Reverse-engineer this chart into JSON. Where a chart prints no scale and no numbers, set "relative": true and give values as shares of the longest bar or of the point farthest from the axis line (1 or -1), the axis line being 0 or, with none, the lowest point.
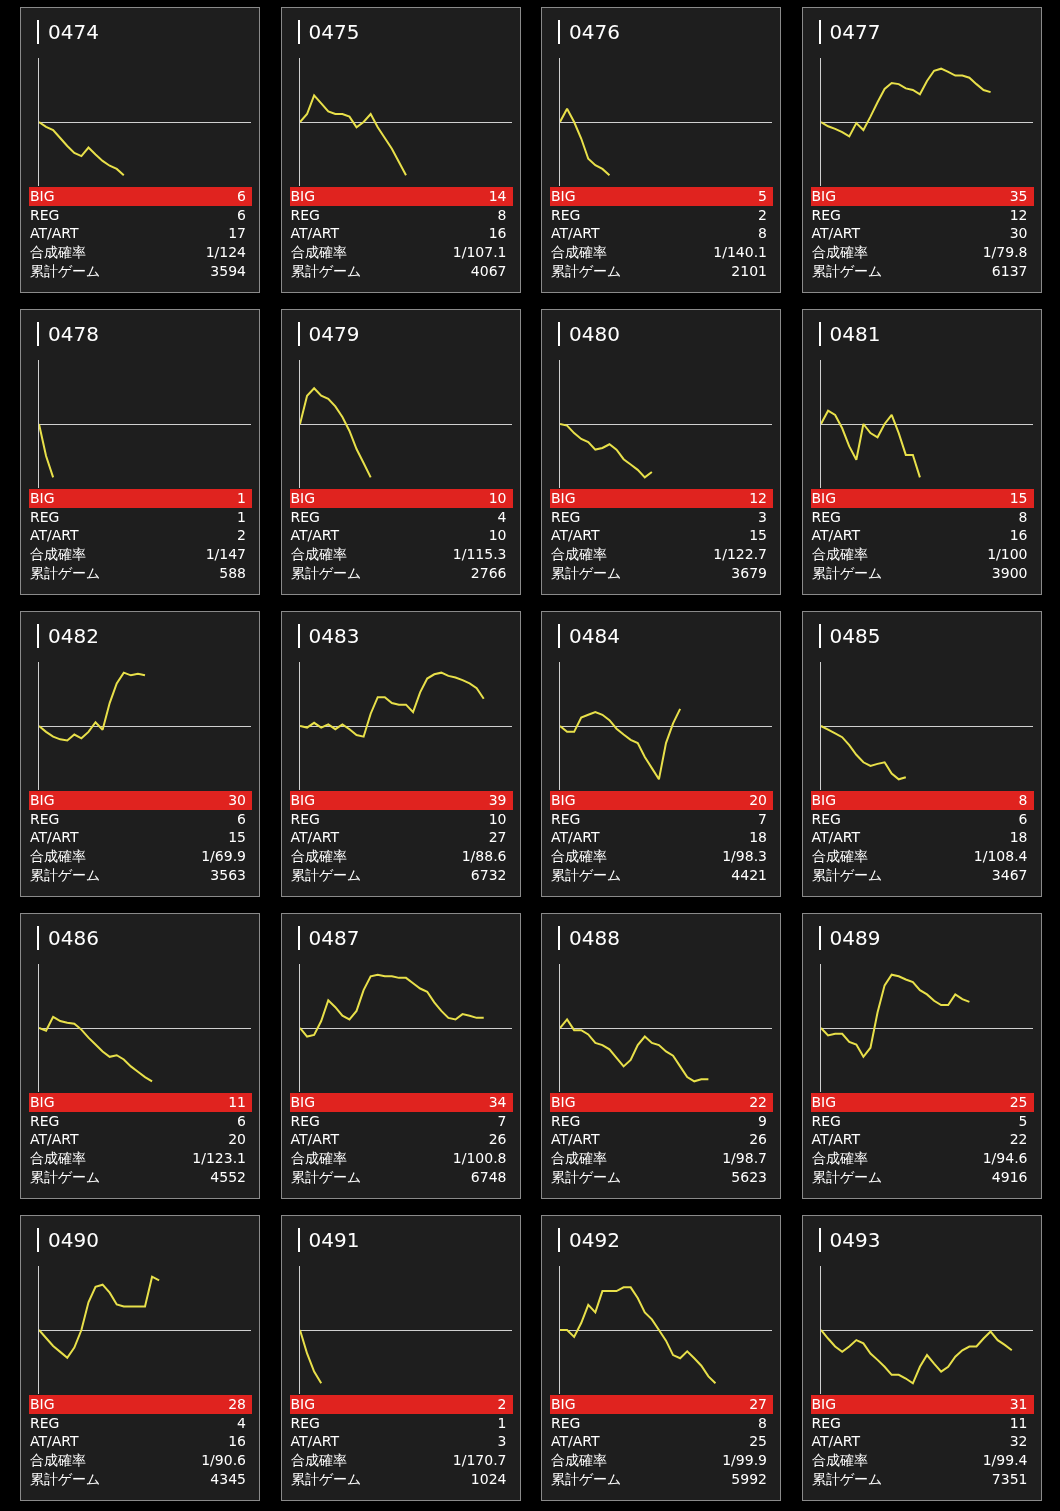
{
  "chart_data": [
    {
      "type": "line",
      "title": "0474",
      "relative": true,
      "categories": [
        null,
        null,
        null,
        null,
        null,
        null,
        null,
        null,
        null,
        null,
        null,
        null,
        null,
        null,
        null,
        null,
        null,
        null,
        null,
        null,
        null,
        null,
        null,
        null,
        null,
        null,
        null,
        null,
        null,
        null,
        null
      ],
      "series": [
        {
          "color": "#e8e04a",
          "values": [
            0,
            -0.09,
            -0.15,
            -0.3,
            -0.45,
            -0.58,
            -0.64,
            -0.48,
            -0.61,
            -0.73,
            -0.82,
            -0.88,
            -1,
            null,
            null,
            null,
            null,
            null,
            null,
            null,
            null,
            null,
            null,
            null,
            null,
            null,
            null,
            null,
            null,
            null,
            null
          ]
        }
      ],
      "annotations": [
        "BIG",
        "6",
        "REG",
        "6",
        "AT/ART",
        "17",
        "合成確率",
        "1/124",
        "累計ゲーム",
        "3594"
      ]
    },
    {
      "type": "line",
      "title": "0475",
      "relative": true,
      "categories": [
        null,
        null,
        null,
        null,
        null,
        null,
        null,
        null,
        null,
        null,
        null,
        null,
        null,
        null,
        null,
        null,
        null,
        null,
        null,
        null,
        null,
        null,
        null,
        null,
        null,
        null,
        null,
        null,
        null,
        null,
        null
      ],
      "series": [
        {
          "color": "#e8e04a",
          "values": [
            0,
            0.15,
            0.5,
            0.35,
            0.2,
            0.15,
            0.15,
            0.1,
            -0.1,
            0,
            0.15,
            -0.1,
            -0.3,
            -0.5,
            -0.75,
            -1,
            null,
            null,
            null,
            null,
            null,
            null,
            null,
            null,
            null,
            null,
            null,
            null,
            null,
            null,
            null
          ]
        }
      ],
      "annotations": [
        "BIG",
        "14",
        "REG",
        "8",
        "AT/ART",
        "16",
        "合成確率",
        "1/107.1",
        "累計ゲーム",
        "4067"
      ]
    },
    {
      "type": "line",
      "title": "0476",
      "relative": true,
      "categories": [
        null,
        null,
        null,
        null,
        null,
        null,
        null,
        null,
        null,
        null,
        null,
        null,
        null,
        null,
        null,
        null,
        null,
        null,
        null,
        null,
        null,
        null,
        null,
        null,
        null,
        null,
        null,
        null,
        null,
        null,
        null
      ],
      "series": [
        {
          "color": "#e8e04a",
          "values": [
            0,
            0.25,
            0,
            -0.31,
            -0.69,
            -0.81,
            -0.88,
            -1,
            null,
            null,
            null,
            null,
            null,
            null,
            null,
            null,
            null,
            null,
            null,
            null,
            null,
            null,
            null,
            null,
            null,
            null,
            null,
            null,
            null,
            null,
            null
          ]
        }
      ],
      "annotations": [
        "BIG",
        "5",
        "REG",
        "2",
        "AT/ART",
        "8",
        "合成確率",
        "1/140.1",
        "累計ゲーム",
        "2101"
      ]
    },
    {
      "type": "line",
      "title": "0477",
      "relative": true,
      "categories": [
        null,
        null,
        null,
        null,
        null,
        null,
        null,
        null,
        null,
        null,
        null,
        null,
        null,
        null,
        null,
        null,
        null,
        null,
        null,
        null,
        null,
        null,
        null,
        null,
        null,
        null,
        null,
        null,
        null,
        null,
        null
      ],
      "series": [
        {
          "color": "#e8e04a",
          "values": [
            0,
            -0.08,
            -0.13,
            -0.19,
            -0.27,
            -0.02,
            -0.15,
            0.1,
            0.37,
            0.62,
            0.73,
            0.71,
            0.63,
            0.6,
            0.52,
            0.77,
            0.96,
            1,
            0.94,
            0.87,
            0.87,
            0.83,
            0.71,
            0.6,
            0.56,
            null,
            null,
            null,
            null,
            null,
            null
          ]
        }
      ],
      "annotations": [
        "BIG",
        "35",
        "REG",
        "12",
        "AT/ART",
        "30",
        "合成確率",
        "1/79.8",
        "累計ゲーム",
        "6137"
      ]
    },
    {
      "type": "line",
      "title": "0478",
      "relative": true,
      "categories": [
        null,
        null,
        null,
        null,
        null,
        null,
        null,
        null,
        null,
        null,
        null,
        null,
        null,
        null,
        null,
        null,
        null,
        null,
        null,
        null,
        null,
        null,
        null,
        null,
        null,
        null,
        null,
        null,
        null,
        null,
        null
      ],
      "series": [
        {
          "color": "#e8e04a",
          "values": [
            0,
            -0.6,
            -1,
            null,
            null,
            null,
            null,
            null,
            null,
            null,
            null,
            null,
            null,
            null,
            null,
            null,
            null,
            null,
            null,
            null,
            null,
            null,
            null,
            null,
            null,
            null,
            null,
            null,
            null,
            null,
            null
          ]
        }
      ],
      "annotations": [
        "BIG",
        "1",
        "REG",
        "1",
        "AT/ART",
        "2",
        "合成確率",
        "1/147",
        "累計ゲーム",
        "588"
      ]
    },
    {
      "type": "line",
      "title": "0479",
      "relative": true,
      "categories": [
        null,
        null,
        null,
        null,
        null,
        null,
        null,
        null,
        null,
        null,
        null,
        null,
        null,
        null,
        null,
        null,
        null,
        null,
        null,
        null,
        null,
        null,
        null,
        null,
        null,
        null,
        null,
        null,
        null,
        null,
        null
      ],
      "series": [
        {
          "color": "#e8e04a",
          "values": [
            0,
            0.53,
            0.67,
            0.53,
            0.47,
            0.33,
            0.13,
            -0.13,
            -0.47,
            -0.73,
            -1,
            null,
            null,
            null,
            null,
            null,
            null,
            null,
            null,
            null,
            null,
            null,
            null,
            null,
            null,
            null,
            null,
            null,
            null,
            null,
            null
          ]
        }
      ],
      "annotations": [
        "BIG",
        "10",
        "REG",
        "4",
        "AT/ART",
        "10",
        "合成確率",
        "1/115.3",
        "累計ゲーム",
        "2766"
      ]
    },
    {
      "type": "line",
      "title": "0480",
      "relative": true,
      "categories": [
        null,
        null,
        null,
        null,
        null,
        null,
        null,
        null,
        null,
        null,
        null,
        null,
        null,
        null,
        null,
        null,
        null,
        null,
        null,
        null,
        null,
        null,
        null,
        null,
        null,
        null,
        null,
        null,
        null,
        null,
        null
      ],
      "series": [
        {
          "color": "#e8e04a",
          "values": [
            0,
            -0.03,
            -0.17,
            -0.28,
            -0.34,
            -0.48,
            -0.45,
            -0.38,
            -0.48,
            -0.66,
            -0.76,
            -0.86,
            -1,
            -0.9,
            null,
            null,
            null,
            null,
            null,
            null,
            null,
            null,
            null,
            null,
            null,
            null,
            null,
            null,
            null,
            null,
            null
          ]
        }
      ],
      "annotations": [
        "BIG",
        "12",
        "REG",
        "3",
        "AT/ART",
        "15",
        "合成確率",
        "1/122.7",
        "累計ゲーム",
        "3679"
      ]
    },
    {
      "type": "line",
      "title": "0481",
      "relative": true,
      "categories": [
        null,
        null,
        null,
        null,
        null,
        null,
        null,
        null,
        null,
        null,
        null,
        null,
        null,
        null,
        null,
        null,
        null,
        null,
        null,
        null,
        null,
        null,
        null,
        null,
        null,
        null,
        null,
        null,
        null,
        null,
        null
      ],
      "series": [
        {
          "color": "#e8e04a",
          "values": [
            0,
            0.25,
            0.17,
            -0.08,
            -0.42,
            -0.67,
            0,
            -0.17,
            -0.25,
            0,
            0.17,
            -0.17,
            -0.58,
            -0.58,
            -1,
            null,
            null,
            null,
            null,
            null,
            null,
            null,
            null,
            null,
            null,
            null,
            null,
            null,
            null,
            null,
            null
          ]
        }
      ],
      "annotations": [
        "BIG",
        "15",
        "REG",
        "8",
        "AT/ART",
        "16",
        "合成確率",
        "1/100",
        "累計ゲーム",
        "3900"
      ]
    },
    {
      "type": "line",
      "title": "0482",
      "relative": true,
      "categories": [
        null,
        null,
        null,
        null,
        null,
        null,
        null,
        null,
        null,
        null,
        null,
        null,
        null,
        null,
        null,
        null,
        null,
        null,
        null,
        null,
        null,
        null,
        null,
        null,
        null,
        null,
        null,
        null,
        null,
        null,
        null
      ],
      "series": [
        {
          "color": "#e8e04a",
          "values": [
            0,
            -0.11,
            -0.2,
            -0.25,
            -0.27,
            -0.16,
            -0.23,
            -0.11,
            0.07,
            -0.07,
            0.43,
            0.8,
            1,
            0.95,
            0.98,
            0.95,
            null,
            null,
            null,
            null,
            null,
            null,
            null,
            null,
            null,
            null,
            null,
            null,
            null,
            null,
            null
          ]
        }
      ],
      "annotations": [
        "BIG",
        "30",
        "REG",
        "6",
        "AT/ART",
        "15",
        "合成確率",
        "1/69.9",
        "累計ゲーム",
        "3563"
      ]
    },
    {
      "type": "line",
      "title": "0483",
      "relative": true,
      "categories": [
        null,
        null,
        null,
        null,
        null,
        null,
        null,
        null,
        null,
        null,
        null,
        null,
        null,
        null,
        null,
        null,
        null,
        null,
        null,
        null,
        null,
        null,
        null,
        null,
        null,
        null,
        null,
        null,
        null,
        null,
        null
      ],
      "series": [
        {
          "color": "#e8e04a",
          "values": [
            0,
            -0.03,
            0.06,
            -0.03,
            0.03,
            -0.06,
            0.03,
            -0.06,
            -0.17,
            -0.2,
            0.23,
            0.54,
            0.54,
            0.43,
            0.4,
            0.4,
            0.26,
            0.63,
            0.89,
            0.97,
            1,
            0.94,
            0.91,
            0.86,
            0.8,
            0.71,
            0.51,
            null,
            null,
            null,
            null
          ]
        }
      ],
      "annotations": [
        "BIG",
        "39",
        "REG",
        "10",
        "AT/ART",
        "27",
        "合成確率",
        "1/88.6",
        "累計ゲーム",
        "6732"
      ]
    },
    {
      "type": "line",
      "title": "0484",
      "relative": true,
      "categories": [
        null,
        null,
        null,
        null,
        null,
        null,
        null,
        null,
        null,
        null,
        null,
        null,
        null,
        null,
        null,
        null,
        null,
        null,
        null,
        null,
        null,
        null,
        null,
        null,
        null,
        null,
        null,
        null,
        null,
        null,
        null
      ],
      "series": [
        {
          "color": "#e8e04a",
          "values": [
            0,
            -0.11,
            -0.11,
            0.16,
            0.21,
            0.26,
            0.21,
            0.11,
            -0.05,
            -0.16,
            -0.26,
            -0.32,
            -0.58,
            -0.79,
            -1,
            -0.32,
            0.05,
            0.32,
            null,
            null,
            null,
            null,
            null,
            null,
            null,
            null,
            null,
            null,
            null,
            null,
            null
          ]
        }
      ],
      "annotations": [
        "BIG",
        "20",
        "REG",
        "7",
        "AT/ART",
        "18",
        "合成確率",
        "1/98.3",
        "累計ゲーム",
        "4421"
      ]
    },
    {
      "type": "line",
      "title": "0485",
      "relative": true,
      "categories": [
        null,
        null,
        null,
        null,
        null,
        null,
        null,
        null,
        null,
        null,
        null,
        null,
        null,
        null,
        null,
        null,
        null,
        null,
        null,
        null,
        null,
        null,
        null,
        null,
        null,
        null,
        null,
        null,
        null,
        null,
        null
      ],
      "series": [
        {
          "color": "#e8e04a",
          "values": [
            0,
            -0.07,
            -0.14,
            -0.21,
            -0.36,
            -0.54,
            -0.68,
            -0.75,
            -0.71,
            -0.68,
            -0.89,
            -1,
            -0.96,
            null,
            null,
            null,
            null,
            null,
            null,
            null,
            null,
            null,
            null,
            null,
            null,
            null,
            null,
            null,
            null,
            null,
            null
          ]
        }
      ],
      "annotations": [
        "BIG",
        "8",
        "REG",
        "6",
        "AT/ART",
        "18",
        "合成確率",
        "1/108.4",
        "累計ゲーム",
        "3467"
      ]
    },
    {
      "type": "line",
      "title": "0486",
      "relative": true,
      "categories": [
        null,
        null,
        null,
        null,
        null,
        null,
        null,
        null,
        null,
        null,
        null,
        null,
        null,
        null,
        null,
        null,
        null,
        null,
        null,
        null,
        null,
        null,
        null,
        null,
        null,
        null,
        null,
        null,
        null,
        null,
        null
      ],
      "series": [
        {
          "color": "#e8e04a",
          "values": [
            0,
            -0.05,
            0.21,
            0.13,
            0.1,
            0.08,
            -0.03,
            -0.18,
            -0.31,
            -0.44,
            -0.54,
            -0.51,
            -0.59,
            -0.72,
            -0.82,
            -0.92,
            -1,
            null,
            null,
            null,
            null,
            null,
            null,
            null,
            null,
            null,
            null,
            null,
            null,
            null,
            null
          ]
        }
      ],
      "annotations": [
        "BIG",
        "11",
        "REG",
        "6",
        "AT/ART",
        "20",
        "合成確率",
        "1/123.1",
        "累計ゲーム",
        "4552"
      ]
    },
    {
      "type": "line",
      "title": "0487",
      "relative": true,
      "categories": [
        null,
        null,
        null,
        null,
        null,
        null,
        null,
        null,
        null,
        null,
        null,
        null,
        null,
        null,
        null,
        null,
        null,
        null,
        null,
        null,
        null,
        null,
        null,
        null,
        null,
        null,
        null,
        null,
        null,
        null,
        null
      ],
      "series": [
        {
          "color": "#e8e04a",
          "values": [
            0,
            -0.16,
            -0.13,
            0.13,
            0.52,
            0.39,
            0.23,
            0.16,
            0.32,
            0.71,
            0.97,
            1,
            0.97,
            0.97,
            0.94,
            0.94,
            0.84,
            0.74,
            0.68,
            0.48,
            0.32,
            0.19,
            0.16,
            0.26,
            0.23,
            0.19,
            0.19,
            null,
            null,
            null,
            null
          ]
        }
      ],
      "annotations": [
        "BIG",
        "34",
        "REG",
        "7",
        "AT/ART",
        "26",
        "合成確率",
        "1/100.8",
        "累計ゲーム",
        "6748"
      ]
    },
    {
      "type": "line",
      "title": "0488",
      "relative": true,
      "categories": [
        null,
        null,
        null,
        null,
        null,
        null,
        null,
        null,
        null,
        null,
        null,
        null,
        null,
        null,
        null,
        null,
        null,
        null,
        null,
        null,
        null,
        null,
        null,
        null,
        null,
        null,
        null,
        null,
        null,
        null,
        null
      ],
      "series": [
        {
          "color": "#e8e04a",
          "values": [
            0,
            0.16,
            -0.04,
            -0.04,
            -0.12,
            -0.28,
            -0.32,
            -0.4,
            -0.56,
            -0.72,
            -0.6,
            -0.32,
            -0.16,
            -0.28,
            -0.32,
            -0.44,
            -0.52,
            -0.72,
            -0.92,
            -1,
            -0.96,
            -0.96,
            null,
            null,
            null,
            null,
            null,
            null,
            null,
            null,
            null
          ]
        }
      ],
      "annotations": [
        "BIG",
        "22",
        "REG",
        "9",
        "AT/ART",
        "26",
        "合成確率",
        "1/98.7",
        "累計ゲーム",
        "5623"
      ]
    },
    {
      "type": "line",
      "title": "0489",
      "relative": true,
      "categories": [
        null,
        null,
        null,
        null,
        null,
        null,
        null,
        null,
        null,
        null,
        null,
        null,
        null,
        null,
        null,
        null,
        null,
        null,
        null,
        null,
        null,
        null,
        null,
        null,
        null,
        null,
        null,
        null,
        null,
        null,
        null
      ],
      "series": [
        {
          "color": "#e8e04a",
          "values": [
            0,
            -0.14,
            -0.11,
            -0.11,
            -0.26,
            -0.31,
            -0.54,
            -0.37,
            0.29,
            0.8,
            1,
            0.97,
            0.91,
            0.86,
            0.71,
            0.63,
            0.51,
            0.43,
            0.43,
            0.63,
            0.54,
            0.49,
            null,
            null,
            null,
            null,
            null,
            null,
            null,
            null,
            null
          ]
        }
      ],
      "annotations": [
        "BIG",
        "25",
        "REG",
        "5",
        "AT/ART",
        "22",
        "合成確率",
        "1/94.6",
        "累計ゲーム",
        "4916"
      ]
    },
    {
      "type": "line",
      "title": "0490",
      "relative": true,
      "categories": [
        null,
        null,
        null,
        null,
        null,
        null,
        null,
        null,
        null,
        null,
        null,
        null,
        null,
        null,
        null,
        null,
        null,
        null,
        null,
        null,
        null,
        null,
        null,
        null,
        null,
        null,
        null,
        null,
        null,
        null,
        null
      ],
      "series": [
        {
          "color": "#e8e04a",
          "values": [
            0,
            -0.15,
            -0.3,
            -0.41,
            -0.52,
            -0.33,
            0,
            0.52,
            0.81,
            0.85,
            0.7,
            0.48,
            0.44,
            0.44,
            0.44,
            0.44,
            1,
            0.93,
            null,
            null,
            null,
            null,
            null,
            null,
            null,
            null,
            null,
            null,
            null,
            null,
            null
          ]
        }
      ],
      "annotations": [
        "BIG",
        "28",
        "REG",
        "4",
        "AT/ART",
        "16",
        "合成確率",
        "1/90.6",
        "累計ゲーム",
        "4345"
      ]
    },
    {
      "type": "line",
      "title": "0491",
      "relative": true,
      "categories": [
        null,
        null,
        null,
        null,
        null,
        null,
        null,
        null,
        null,
        null,
        null,
        null,
        null,
        null,
        null,
        null,
        null,
        null,
        null,
        null,
        null,
        null,
        null,
        null,
        null,
        null,
        null,
        null,
        null,
        null,
        null
      ],
      "series": [
        {
          "color": "#e8e04a",
          "values": [
            0,
            -0.44,
            -0.78,
            -1,
            null,
            null,
            null,
            null,
            null,
            null,
            null,
            null,
            null,
            null,
            null,
            null,
            null,
            null,
            null,
            null,
            null,
            null,
            null,
            null,
            null,
            null,
            null,
            null,
            null,
            null,
            null
          ]
        }
      ],
      "annotations": [
        "BIG",
        "2",
        "REG",
        "1",
        "AT/ART",
        "3",
        "合成確率",
        "1/170.7",
        "累計ゲーム",
        "1024"
      ]
    },
    {
      "type": "line",
      "title": "0492",
      "relative": true,
      "categories": [
        null,
        null,
        null,
        null,
        null,
        null,
        null,
        null,
        null,
        null,
        null,
        null,
        null,
        null,
        null,
        null,
        null,
        null,
        null,
        null,
        null,
        null,
        null,
        null,
        null,
        null,
        null,
        null,
        null,
        null,
        null
      ],
      "series": [
        {
          "color": "#e8e04a",
          "values": [
            0,
            0,
            -0.13,
            0.13,
            0.47,
            0.33,
            0.73,
            0.73,
            0.73,
            0.8,
            0.8,
            0.6,
            0.33,
            0.2,
            0,
            -0.2,
            -0.47,
            -0.53,
            -0.4,
            -0.53,
            -0.67,
            -0.87,
            -1,
            null,
            null,
            null,
            null,
            null,
            null,
            null,
            null
          ]
        }
      ],
      "annotations": [
        "BIG",
        "27",
        "REG",
        "8",
        "AT/ART",
        "25",
        "合成確率",
        "1/99.9",
        "累計ゲーム",
        "5992"
      ]
    },
    {
      "type": "line",
      "title": "0493",
      "relative": true,
      "categories": [
        null,
        null,
        null,
        null,
        null,
        null,
        null,
        null,
        null,
        null,
        null,
        null,
        null,
        null,
        null,
        null,
        null,
        null,
        null,
        null,
        null,
        null,
        null,
        null,
        null,
        null,
        null,
        null,
        null,
        null,
        null
      ],
      "series": [
        {
          "color": "#e8e04a",
          "values": [
            0,
            -0.16,
            -0.31,
            -0.41,
            -0.31,
            -0.19,
            -0.25,
            -0.44,
            -0.56,
            -0.69,
            -0.84,
            -0.84,
            -0.91,
            -1,
            -0.69,
            -0.47,
            -0.63,
            -0.78,
            -0.69,
            -0.5,
            -0.38,
            -0.31,
            -0.31,
            -0.16,
            -0.03,
            -0.19,
            -0.28,
            -0.38,
            null,
            null,
            null
          ]
        }
      ],
      "annotations": [
        "BIG",
        "31",
        "REG",
        "11",
        "AT/ART",
        "32",
        "合成確率",
        "1/99.4",
        "累計ゲーム",
        "7351"
      ]
    }
  ]
}
